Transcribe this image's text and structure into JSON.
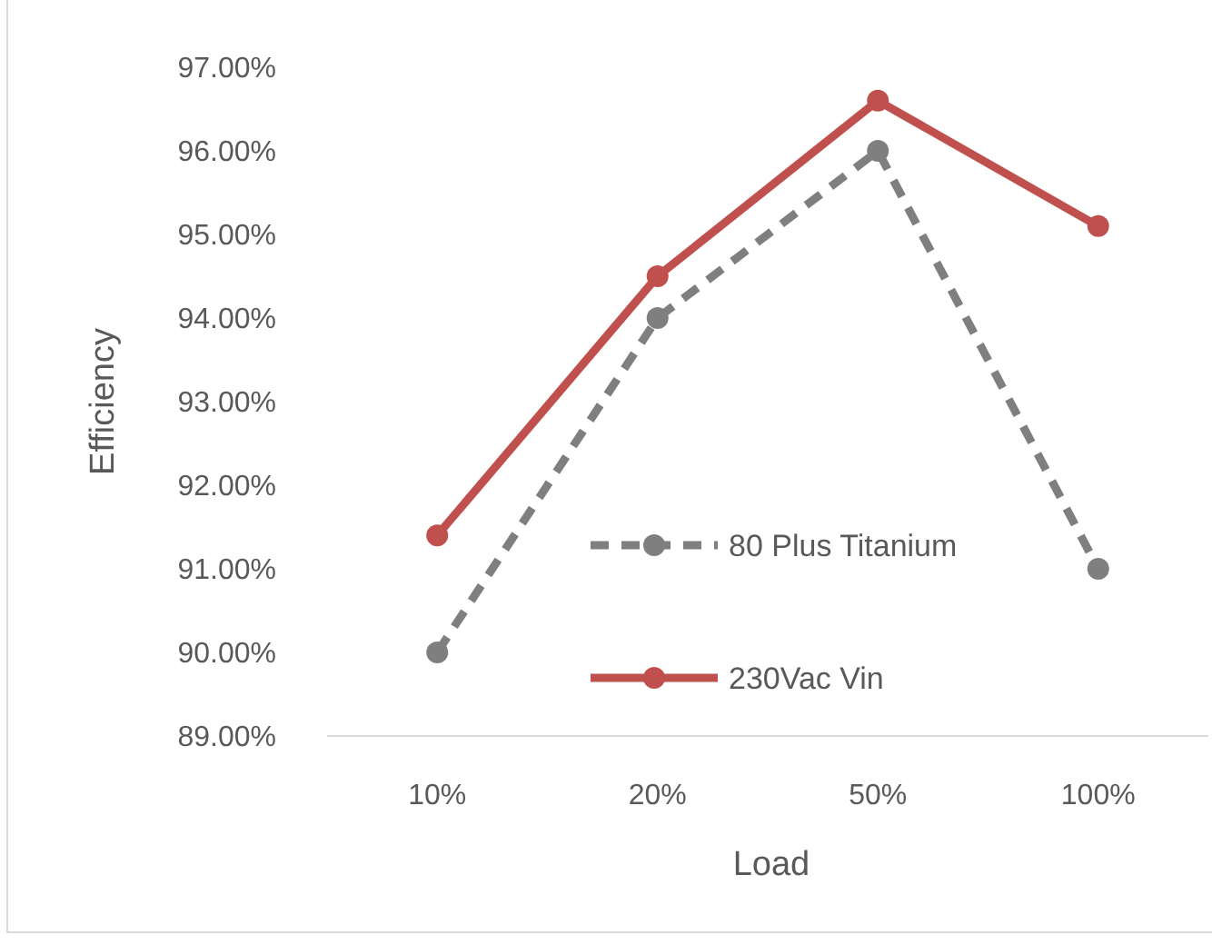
{
  "chart_data": {
    "type": "line",
    "xlabel": "Load",
    "ylabel": "Efficiency",
    "categories": [
      "10%",
      "20%",
      "50%",
      "100%"
    ],
    "series": [
      {
        "name": "80 Plus Titanium",
        "color": "#7f7f7f",
        "values": [
          90,
          94,
          96,
          91
        ],
        "line_style": "dashed"
      },
      {
        "name": "230Vac Vin",
        "color": "#c0504d",
        "values": [
          91.4,
          94.5,
          96.6,
          95.1
        ],
        "line_style": "solid"
      }
    ],
    "ylim": [
      89,
      97
    ],
    "yticks": [
      {
        "value": 89,
        "label": "89.00%"
      },
      {
        "value": 90,
        "label": "90.00%"
      },
      {
        "value": 91,
        "label": "91.00%"
      },
      {
        "value": 92,
        "label": "92.00%"
      },
      {
        "value": 93,
        "label": "93.00%"
      },
      {
        "value": 94,
        "label": "94.00%"
      },
      {
        "value": 95,
        "label": "95.00%"
      },
      {
        "value": 96,
        "label": "96.00%"
      },
      {
        "value": 97,
        "label": "97.00%"
      }
    ],
    "grid": false,
    "legend": "bottom",
    "marker": "circle"
  }
}
